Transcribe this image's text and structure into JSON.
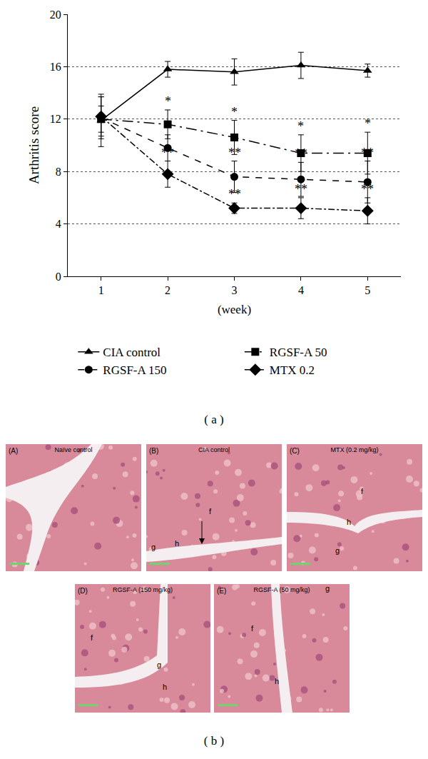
{
  "chart_data": {
    "type": "line",
    "xlabel": "(week)",
    "ylabel": "Arthritis score",
    "x": [
      1,
      2,
      3,
      4,
      5
    ],
    "xlim": [
      0.5,
      5.5
    ],
    "xticks": [
      1,
      2,
      3,
      4,
      5
    ],
    "ylim": [
      0,
      20
    ],
    "yticks": [
      0,
      4,
      8,
      12,
      16,
      20
    ],
    "grid": true,
    "legend": "bottom",
    "series": [
      {
        "name": "CIA control",
        "color": "#000000",
        "marker": "triangle-up",
        "line_style": "solid",
        "values": [
          11.9,
          15.8,
          15.6,
          16.1,
          15.7
        ],
        "error": [
          2.0,
          0.6,
          1.0,
          1.0,
          0.5
        ],
        "significance": [
          null,
          null,
          null,
          null,
          null
        ]
      },
      {
        "name": "RGSF-A 50",
        "color": "#000000",
        "marker": "square",
        "line_style": "longdashdot",
        "values": [
          12.0,
          11.6,
          10.6,
          9.4,
          9.4
        ],
        "error": [
          1.0,
          1.1,
          1.3,
          1.4,
          1.6
        ],
        "significance": [
          null,
          "*",
          "*",
          "*",
          "*"
        ]
      },
      {
        "name": "RGSF-A 150",
        "color": "#000000",
        "marker": "circle",
        "line_style": "dash",
        "values": [
          12.1,
          9.8,
          7.6,
          7.4,
          7.2
        ],
        "error": [
          1.6,
          1.0,
          1.2,
          1.3,
          1.6
        ],
        "significance": [
          null,
          null,
          "**",
          "**",
          "**"
        ]
      },
      {
        "name": "MTX 0.2",
        "color": "#000000",
        "marker": "diamond",
        "line_style": "dashdot",
        "values": [
          12.2,
          7.8,
          5.2,
          5.2,
          5.0
        ],
        "error": [
          1.5,
          1.0,
          0.4,
          0.8,
          1.0
        ],
        "significance": [
          null,
          "**",
          "**",
          "**",
          "**"
        ]
      }
    ]
  },
  "figure": {
    "panel_a_label": "( a )",
    "panel_b_label": "( b )",
    "images": [
      {
        "tag": "(A)",
        "title": "Naïve control",
        "labels": []
      },
      {
        "tag": "(B)",
        "title": "CIA control",
        "labels": [
          "f",
          "g",
          "h"
        ]
      },
      {
        "tag": "(C)",
        "title": "MTX (0.2 mg/kg)",
        "labels": [
          "f",
          "h",
          "g"
        ]
      },
      {
        "tag": "(D)",
        "title": "RGSF-A (150 mg/kg)",
        "labels": [
          "f",
          "g",
          "h"
        ]
      },
      {
        "tag": "(E)",
        "title": "RGSF-A (50 mg/kg)",
        "labels": [
          "g",
          "f",
          "h"
        ]
      }
    ]
  }
}
